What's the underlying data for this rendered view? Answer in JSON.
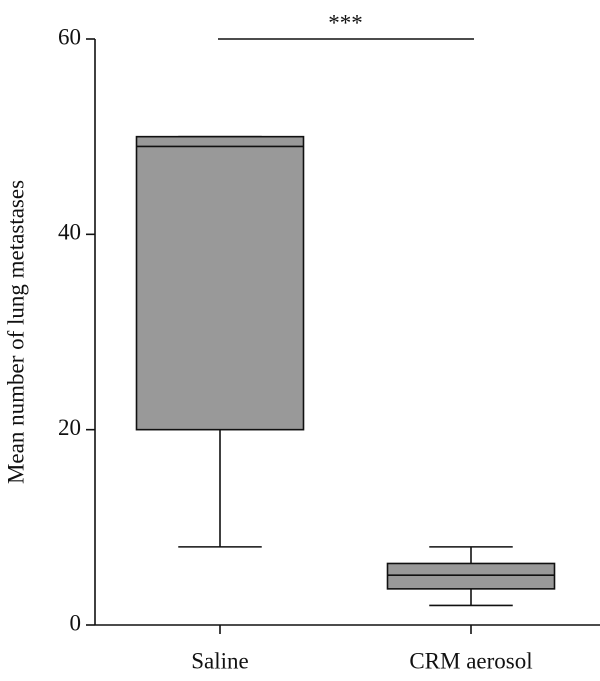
{
  "chart_data": {
    "type": "box",
    "ylabel": "Mean number of lung metastases",
    "categories": [
      "Saline",
      "CRM aerosol"
    ],
    "boxes": [
      {
        "min": 8,
        "q1": 20,
        "median": 49,
        "q3": 50,
        "max": 50
      },
      {
        "min": 2,
        "q1": 3.7,
        "median": 5.1,
        "q3": 6.3,
        "max": 8
      }
    ],
    "color": "#999999",
    "ylim": [
      0,
      60
    ],
    "yticks": [
      0,
      20,
      40,
      60
    ],
    "annotation": "***"
  }
}
